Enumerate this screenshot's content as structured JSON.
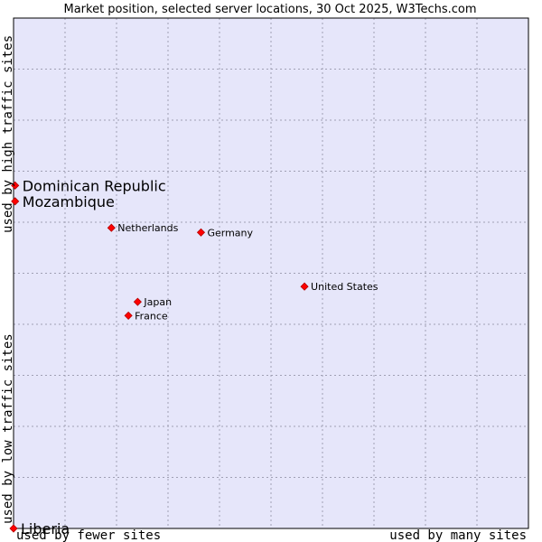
{
  "chart_data": {
    "type": "scatter",
    "title": "Market position, selected server locations, 30 Oct 2025, W3Techs.com",
    "xlabel_left": "used by fewer sites",
    "xlabel_right": "used by many sites",
    "ylabel_top": "used by high traffic sites",
    "ylabel_bottom": "used by low traffic sites",
    "xlim": [
      0,
      100
    ],
    "ylim": [
      0,
      100
    ],
    "grid": true,
    "colors": {
      "plot_bg": "#e6e6fa",
      "grid": "#a0a0b4",
      "point": "#ff0000",
      "point_edge": "#b40000",
      "text": "#000000"
    },
    "points": [
      {
        "name": "Dominican Republic",
        "x": 0.3,
        "y": 67.2,
        "emphasis": true
      },
      {
        "name": "Mozambique",
        "x": 0.3,
        "y": 64.1,
        "emphasis": true
      },
      {
        "name": "Netherlands",
        "x": 19.0,
        "y": 58.9,
        "emphasis": false
      },
      {
        "name": "Germany",
        "x": 36.4,
        "y": 58.0,
        "emphasis": false
      },
      {
        "name": "United States",
        "x": 56.5,
        "y": 47.4,
        "emphasis": false
      },
      {
        "name": "Japan",
        "x": 24.1,
        "y": 44.4,
        "emphasis": false
      },
      {
        "name": "France",
        "x": 22.3,
        "y": 41.7,
        "emphasis": false
      },
      {
        "name": "Liberia",
        "x": 0.0,
        "y": 0.0,
        "emphasis": true
      }
    ]
  }
}
